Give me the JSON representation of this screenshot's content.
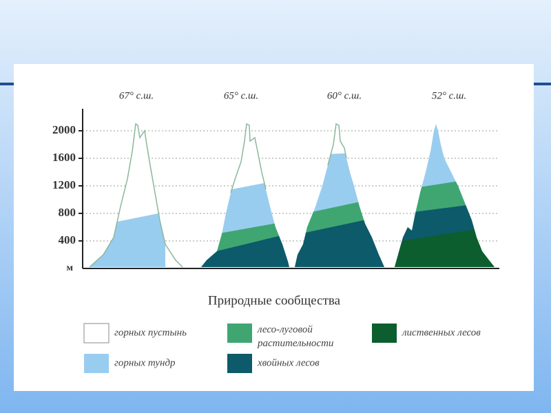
{
  "axis": {
    "ticks": [
      "2000",
      "1600",
      "1200",
      "800",
      "400"
    ],
    "unit": "м"
  },
  "mountains": [
    {
      "label": "67° с.ш."
    },
    {
      "label": "65° с.ш."
    },
    {
      "label": "60° с.ш."
    },
    {
      "label": "52° с.ш."
    }
  ],
  "legend": {
    "title": "Природные сообщества",
    "items": [
      {
        "label": "горных пустынь"
      },
      {
        "label": "горных тундр"
      },
      {
        "label": "лесо-луговой растительности"
      },
      {
        "label": "хвойных лесов"
      },
      {
        "label": "лиственных лесов"
      }
    ]
  }
}
